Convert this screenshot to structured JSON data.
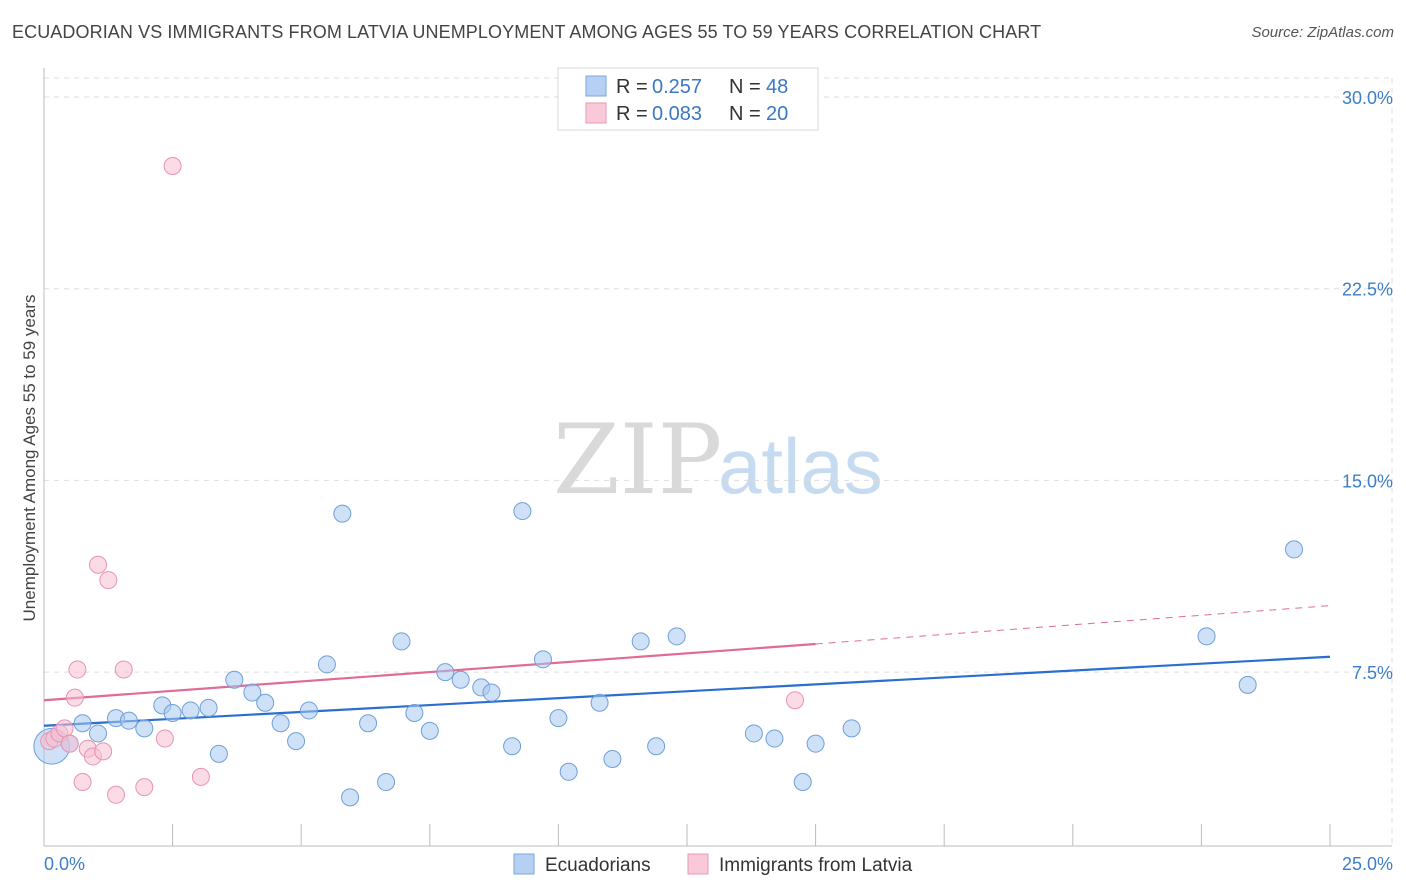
{
  "title": "ECUADORIAN VS IMMIGRANTS FROM LATVIA UNEMPLOYMENT AMONG AGES 55 TO 59 YEARS CORRELATION CHART",
  "source": "Source: ZipAtlas.com",
  "watermark": {
    "zip": "ZIP",
    "atlas": "atlas"
  },
  "chart_data": {
    "type": "scatter",
    "title": "ECUADORIAN VS IMMIGRANTS FROM LATVIA UNEMPLOYMENT AMONG AGES 55 TO 59 YEARS CORRELATION CHART",
    "xlabel": "",
    "ylabel": "Unemployment Among Ages 55 to 59 years",
    "xlim": [
      0,
      25
    ],
    "ylim": [
      0,
      31
    ],
    "x_tick_labels": [
      {
        "value": 0,
        "label": "0.0%"
      },
      {
        "value": 25,
        "label": "25.0%"
      }
    ],
    "y_tick_labels": [
      {
        "value": 7.5,
        "label": "7.5%"
      },
      {
        "value": 15,
        "label": "15.0%"
      },
      {
        "value": 22.5,
        "label": "22.5%"
      },
      {
        "value": 30,
        "label": "30.0%"
      }
    ],
    "grid": true,
    "legend_position": "top-center",
    "series": [
      {
        "name": "Ecuadorians",
        "color": "#a8c8f0",
        "edge": "#6f9fd8",
        "line_color": "#2a6fd0",
        "R": "0.257",
        "N": "48",
        "trend": {
          "x": [
            0,
            25
          ],
          "y": [
            5.4,
            8.1
          ]
        },
        "points": [
          [
            0.15,
            4.6,
            2.1
          ],
          [
            0.5,
            4.7,
            1
          ],
          [
            0.75,
            5.5,
            1
          ],
          [
            1.05,
            5.1,
            1
          ],
          [
            1.4,
            5.7,
            1
          ],
          [
            1.65,
            5.6,
            1
          ],
          [
            1.95,
            5.3,
            1
          ],
          [
            2.3,
            6.2,
            1
          ],
          [
            2.5,
            5.9,
            1
          ],
          [
            2.85,
            6.0,
            1
          ],
          [
            3.2,
            6.1,
            1
          ],
          [
            3.4,
            4.3,
            1
          ],
          [
            3.7,
            7.2,
            1
          ],
          [
            4.05,
            6.7,
            1
          ],
          [
            4.3,
            6.3,
            1
          ],
          [
            4.6,
            5.5,
            1
          ],
          [
            4.9,
            4.8,
            1
          ],
          [
            5.15,
            6.0,
            1
          ],
          [
            5.5,
            7.8,
            1
          ],
          [
            5.8,
            13.7,
            1
          ],
          [
            5.95,
            2.6,
            1
          ],
          [
            6.3,
            5.5,
            1
          ],
          [
            6.65,
            3.2,
            1
          ],
          [
            6.95,
            8.7,
            1
          ],
          [
            7.2,
            5.9,
            1
          ],
          [
            7.5,
            5.2,
            1
          ],
          [
            7.8,
            7.5,
            1
          ],
          [
            8.1,
            7.2,
            1
          ],
          [
            8.5,
            6.9,
            1
          ],
          [
            8.7,
            6.7,
            1
          ],
          [
            9.1,
            4.6,
            1
          ],
          [
            9.3,
            13.8,
            1
          ],
          [
            9.7,
            8.0,
            1
          ],
          [
            10.0,
            5.7,
            1
          ],
          [
            10.2,
            3.6,
            1
          ],
          [
            10.8,
            6.3,
            1
          ],
          [
            11.05,
            4.1,
            1
          ],
          [
            11.6,
            8.7,
            1
          ],
          [
            11.9,
            4.6,
            1
          ],
          [
            12.3,
            8.9,
            1
          ],
          [
            13.8,
            5.1,
            1
          ],
          [
            14.2,
            4.9,
            1
          ],
          [
            14.75,
            3.2,
            1
          ],
          [
            15.0,
            4.7,
            1
          ],
          [
            15.7,
            5.3,
            1
          ],
          [
            22.6,
            8.9,
            1
          ],
          [
            23.4,
            7.0,
            1
          ],
          [
            24.3,
            12.3,
            1
          ]
        ]
      },
      {
        "name": "Immigrants from Latvia",
        "color": "#f7c0d2",
        "edge": "#e893b0",
        "line_color": "#e06b98",
        "R": "0.083",
        "N": "20",
        "trend": {
          "x": [
            0,
            15
          ],
          "y": [
            6.4,
            8.6
          ]
        },
        "trend_dashed": {
          "x": [
            15,
            25
          ],
          "y": [
            8.6,
            10.1
          ]
        },
        "points": [
          [
            0.1,
            4.8,
            1
          ],
          [
            0.2,
            4.9,
            1
          ],
          [
            0.3,
            5.1,
            1
          ],
          [
            0.4,
            5.3,
            1
          ],
          [
            0.5,
            4.7,
            1
          ],
          [
            0.6,
            6.5,
            1
          ],
          [
            0.65,
            7.6,
            1
          ],
          [
            0.75,
            3.2,
            1
          ],
          [
            0.85,
            4.5,
            1
          ],
          [
            0.95,
            4.2,
            1
          ],
          [
            1.05,
            11.7,
            1
          ],
          [
            1.15,
            4.4,
            1
          ],
          [
            1.25,
            11.1,
            1
          ],
          [
            1.4,
            2.7,
            1
          ],
          [
            1.55,
            7.6,
            1
          ],
          [
            1.95,
            3.0,
            1
          ],
          [
            2.35,
            4.9,
            1
          ],
          [
            2.5,
            27.3,
            1
          ],
          [
            3.05,
            3.4,
            1
          ],
          [
            14.6,
            6.4,
            1
          ]
        ]
      }
    ]
  },
  "legend": {
    "row1": {
      "r_label": "R =",
      "r_value": "0.257",
      "n_label": "N =",
      "n_value": "48"
    },
    "row2": {
      "r_label": "R =",
      "r_value": "0.083",
      "n_label": "N =",
      "n_value": "20"
    }
  },
  "bottom_legend": {
    "series1": "Ecuadorians",
    "series2": "Immigrants from Latvia"
  }
}
